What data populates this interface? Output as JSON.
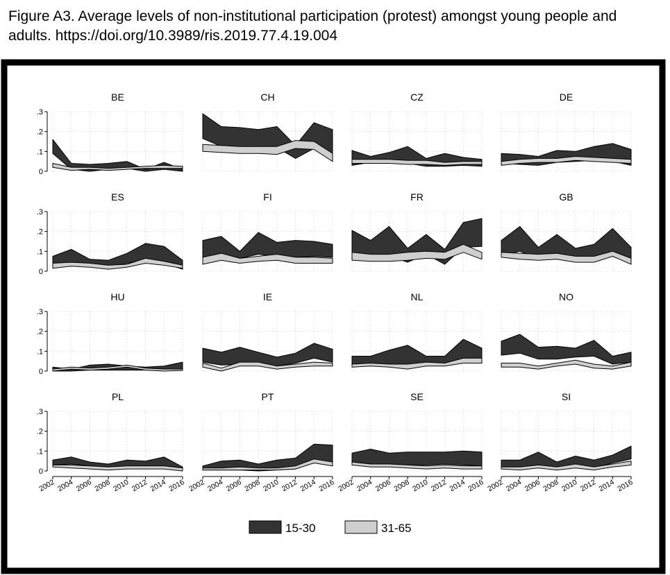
{
  "caption": "Figure A3. Average levels of non-institutional participation (protest) amongst young people and adults. https://doi.org/10.3989/ris.2019.77.4.19.004",
  "colors": {
    "young_fill": "#333333",
    "adult_fill": "#cfcfcf",
    "outline": "#000000"
  },
  "chart_data": {
    "type": "area",
    "description_of_bands": "each series is drawn as a band between lower and upper bounds",
    "x": [
      2002,
      2004,
      2006,
      2008,
      2010,
      2012,
      2014,
      2016
    ],
    "xticks": [
      "2002",
      "2004",
      "2006",
      "2008",
      "2010",
      "2012",
      "2014",
      "2016"
    ],
    "yticks": [
      "0",
      ".1",
      ".2",
      ".3"
    ],
    "ylim": [
      0,
      0.3
    ],
    "grid": true,
    "legend": {
      "placement": "bottom",
      "entries": [
        "15-30",
        "31-65"
      ]
    },
    "panels": [
      {
        "name": "BE",
        "series": [
          {
            "name": "15-30",
            "upper": [
              0.16,
              0.04,
              0.035,
              0.04,
              0.05,
              0.01,
              0.045,
              0.01
            ],
            "lower": [
              0.09,
              0.01,
              0.0,
              0.01,
              0.015,
              0.0,
              0.01,
              0.0
            ]
          },
          {
            "name": "31-65",
            "upper": [
              0.04,
              0.02,
              0.02,
              0.015,
              0.02,
              0.025,
              0.03,
              0.025
            ],
            "lower": [
              0.02,
              0.005,
              0.01,
              0.005,
              0.01,
              0.015,
              0.015,
              0.015
            ]
          }
        ]
      },
      {
        "name": "CH",
        "series": [
          {
            "name": "15-30",
            "upper": [
              0.29,
              0.225,
              0.22,
              0.21,
              0.225,
              0.13,
              0.245,
              0.21
            ],
            "lower": [
              0.165,
              0.125,
              0.115,
              0.12,
              0.12,
              0.065,
              0.115,
              0.09
            ]
          },
          {
            "name": "31-65",
            "upper": [
              0.135,
              0.13,
              0.125,
              0.125,
              0.125,
              0.155,
              0.15,
              0.09
            ],
            "lower": [
              0.1,
              0.095,
              0.09,
              0.09,
              0.085,
              0.115,
              0.11,
              0.05
            ]
          }
        ]
      },
      {
        "name": "CZ",
        "series": [
          {
            "name": "15-30",
            "upper": [
              0.105,
              0.075,
              0.095,
              0.125,
              0.065,
              0.09,
              0.07,
              0.06
            ],
            "lower": [
              0.03,
              0.045,
              0.045,
              0.04,
              0.025,
              0.025,
              0.03,
              0.025
            ]
          },
          {
            "name": "31-65",
            "upper": [
              0.06,
              0.06,
              0.06,
              0.055,
              0.055,
              0.045,
              0.05,
              0.05
            ],
            "lower": [
              0.04,
              0.04,
              0.04,
              0.035,
              0.035,
              0.03,
              0.035,
              0.035
            ]
          }
        ]
      },
      {
        "name": "DE",
        "series": [
          {
            "name": "15-30",
            "upper": [
              0.09,
              0.085,
              0.075,
              0.105,
              0.1,
              0.125,
              0.14,
              0.11
            ],
            "lower": [
              0.04,
              0.035,
              0.03,
              0.045,
              0.05,
              0.055,
              0.05,
              0.03
            ]
          },
          {
            "name": "31-65",
            "upper": [
              0.05,
              0.06,
              0.065,
              0.065,
              0.075,
              0.07,
              0.065,
              0.06
            ],
            "lower": [
              0.03,
              0.04,
              0.045,
              0.045,
              0.055,
              0.05,
              0.045,
              0.04
            ]
          }
        ]
      },
      {
        "name": "ES",
        "series": [
          {
            "name": "15-30",
            "upper": [
              0.075,
              0.11,
              0.06,
              0.055,
              0.09,
              0.14,
              0.125,
              0.055
            ],
            "lower": [
              0.025,
              0.035,
              0.035,
              0.02,
              0.04,
              0.06,
              0.04,
              0.01
            ]
          },
          {
            "name": "31-65",
            "upper": [
              0.04,
              0.045,
              0.04,
              0.03,
              0.035,
              0.065,
              0.05,
              0.03
            ],
            "lower": [
              0.015,
              0.025,
              0.02,
              0.01,
              0.02,
              0.04,
              0.03,
              0.015
            ]
          }
        ]
      },
      {
        "name": "FI",
        "series": [
          {
            "name": "15-30",
            "upper": [
              0.155,
              0.175,
              0.1,
              0.195,
              0.145,
              0.155,
              0.15,
              0.135
            ],
            "lower": [
              0.06,
              0.09,
              0.065,
              0.085,
              0.075,
              0.07,
              0.075,
              0.07
            ]
          },
          {
            "name": "31-65",
            "upper": [
              0.07,
              0.09,
              0.065,
              0.075,
              0.085,
              0.07,
              0.07,
              0.065
            ],
            "lower": [
              0.035,
              0.055,
              0.04,
              0.05,
              0.055,
              0.04,
              0.04,
              0.04
            ]
          }
        ]
      },
      {
        "name": "FR",
        "series": [
          {
            "name": "15-30",
            "upper": [
              0.205,
              0.155,
              0.225,
              0.115,
              0.185,
              0.11,
              0.245,
              0.265
            ],
            "lower": [
              0.09,
              0.07,
              0.08,
              0.045,
              0.085,
              0.035,
              0.12,
              0.125
            ]
          },
          {
            "name": "31-65",
            "upper": [
              0.095,
              0.085,
              0.085,
              0.095,
              0.1,
              0.095,
              0.135,
              0.095
            ],
            "lower": [
              0.055,
              0.05,
              0.05,
              0.055,
              0.065,
              0.06,
              0.095,
              0.06
            ]
          }
        ]
      },
      {
        "name": "GB",
        "series": [
          {
            "name": "15-30",
            "upper": [
              0.155,
              0.225,
              0.12,
              0.185,
              0.115,
              0.135,
              0.215,
              0.12
            ],
            "lower": [
              0.075,
              0.1,
              0.06,
              0.085,
              0.055,
              0.06,
              0.1,
              0.045
            ]
          },
          {
            "name": "31-65",
            "upper": [
              0.095,
              0.09,
              0.085,
              0.09,
              0.075,
              0.075,
              0.1,
              0.065
            ],
            "lower": [
              0.07,
              0.06,
              0.055,
              0.06,
              0.045,
              0.045,
              0.075,
              0.035
            ]
          }
        ]
      },
      {
        "name": "HU",
        "series": [
          {
            "name": "15-30",
            "upper": [
              0.02,
              0.01,
              0.03,
              0.035,
              0.025,
              0.02,
              0.025,
              0.045
            ],
            "lower": [
              0.0,
              0.0,
              0.005,
              0.005,
              0.005,
              0.005,
              0.005,
              0.005
            ]
          },
          {
            "name": "31-65",
            "upper": [
              0.01,
              0.02,
              0.015,
              0.02,
              0.03,
              0.015,
              0.01,
              0.01
            ],
            "lower": [
              0.0,
              0.01,
              0.005,
              0.01,
              0.02,
              0.005,
              0.0,
              0.003
            ]
          }
        ]
      },
      {
        "name": "IE",
        "series": [
          {
            "name": "15-30",
            "upper": [
              0.115,
              0.095,
              0.12,
              0.095,
              0.07,
              0.09,
              0.14,
              0.11
            ],
            "lower": [
              0.045,
              0.03,
              0.035,
              0.04,
              0.025,
              0.04,
              0.065,
              0.045
            ]
          },
          {
            "name": "31-65",
            "upper": [
              0.04,
              0.015,
              0.045,
              0.045,
              0.025,
              0.035,
              0.045,
              0.04
            ],
            "lower": [
              0.02,
              0.0,
              0.025,
              0.025,
              0.01,
              0.02,
              0.025,
              0.025
            ]
          }
        ]
      },
      {
        "name": "NL",
        "series": [
          {
            "name": "15-30",
            "upper": [
              0.075,
              0.075,
              0.105,
              0.13,
              0.075,
              0.075,
              0.16,
              0.115
            ],
            "lower": [
              0.035,
              0.035,
              0.035,
              0.025,
              0.04,
              0.035,
              0.065,
              0.065
            ]
          },
          {
            "name": "31-65",
            "upper": [
              0.035,
              0.04,
              0.035,
              0.035,
              0.045,
              0.04,
              0.065,
              0.065
            ],
            "lower": [
              0.02,
              0.025,
              0.02,
              0.01,
              0.025,
              0.025,
              0.04,
              0.04
            ]
          }
        ]
      },
      {
        "name": "NO",
        "series": [
          {
            "name": "15-30",
            "upper": [
              0.15,
              0.185,
              0.12,
              0.125,
              0.115,
              0.155,
              0.075,
              0.095
            ],
            "lower": [
              0.08,
              0.09,
              0.06,
              0.06,
              0.07,
              0.075,
              0.035,
              0.045
            ]
          },
          {
            "name": "31-65",
            "upper": [
              0.04,
              0.04,
              0.025,
              0.04,
              0.055,
              0.035,
              0.025,
              0.045
            ],
            "lower": [
              0.02,
              0.02,
              0.01,
              0.025,
              0.035,
              0.015,
              0.01,
              0.025
            ]
          }
        ]
      },
      {
        "name": "PL",
        "series": [
          {
            "name": "15-30",
            "upper": [
              0.055,
              0.07,
              0.045,
              0.035,
              0.055,
              0.05,
              0.07,
              0.02
            ],
            "lower": [
              0.03,
              0.035,
              0.025,
              0.015,
              0.015,
              0.02,
              0.025,
              0.005
            ]
          },
          {
            "name": "31-65",
            "upper": [
              0.03,
              0.03,
              0.025,
              0.02,
              0.025,
              0.025,
              0.025,
              0.015
            ],
            "lower": [
              0.02,
              0.015,
              0.01,
              0.005,
              0.01,
              0.01,
              0.01,
              0.0
            ]
          }
        ]
      },
      {
        "name": "PT",
        "series": [
          {
            "name": "15-30",
            "upper": [
              0.025,
              0.05,
              0.055,
              0.035,
              0.055,
              0.065,
              0.135,
              0.13
            ],
            "lower": [
              0.005,
              0.005,
              0.005,
              0.0,
              0.005,
              0.01,
              0.045,
              0.035
            ]
          },
          {
            "name": "31-65",
            "upper": [
              0.015,
              0.015,
              0.02,
              0.015,
              0.015,
              0.025,
              0.06,
              0.045
            ],
            "lower": [
              0.005,
              0.005,
              0.005,
              0.005,
              0.005,
              0.01,
              0.04,
              0.025
            ]
          }
        ]
      },
      {
        "name": "SE",
        "series": [
          {
            "name": "15-30",
            "upper": [
              0.09,
              0.11,
              0.09,
              0.095,
              0.095,
              0.095,
              0.1,
              0.095
            ],
            "lower": [
              0.045,
              0.035,
              0.035,
              0.03,
              0.03,
              0.035,
              0.03,
              0.025
            ]
          },
          {
            "name": "31-65",
            "upper": [
              0.045,
              0.035,
              0.035,
              0.03,
              0.025,
              0.03,
              0.025,
              0.025
            ],
            "lower": [
              0.03,
              0.02,
              0.02,
              0.015,
              0.01,
              0.015,
              0.01,
              0.01
            ]
          }
        ]
      },
      {
        "name": "SI",
        "series": [
          {
            "name": "15-30",
            "upper": [
              0.055,
              0.055,
              0.095,
              0.045,
              0.075,
              0.055,
              0.08,
              0.125
            ],
            "lower": [
              0.02,
              0.02,
              0.03,
              0.015,
              0.025,
              0.015,
              0.04,
              0.06
            ]
          },
          {
            "name": "31-65",
            "upper": [
              0.02,
              0.02,
              0.03,
              0.02,
              0.035,
              0.02,
              0.035,
              0.05
            ],
            "lower": [
              0.01,
              0.005,
              0.015,
              0.005,
              0.015,
              0.005,
              0.02,
              0.03
            ]
          }
        ]
      }
    ]
  }
}
